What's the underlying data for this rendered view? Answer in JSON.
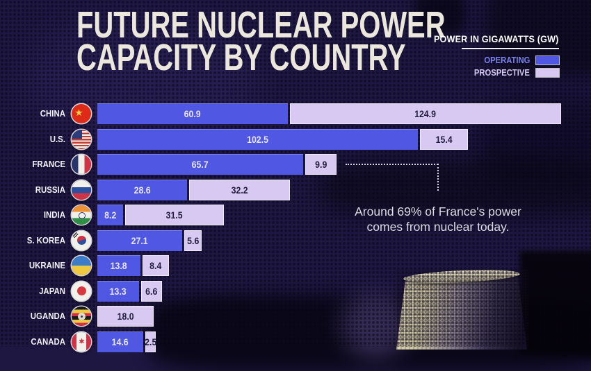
{
  "header": {
    "title_line1": "FUTURE NUCLEAR POWER",
    "title_line2": "CAPACITY BY COUNTRY"
  },
  "legend": {
    "title": "POWER IN GIGAWATTS (GW)",
    "items": [
      {
        "name": "OPERATING",
        "color": "#5057e2"
      },
      {
        "name": "PROSPECTIVE",
        "color": "#d7c9f2"
      }
    ]
  },
  "annotation": {
    "line1": "Around 69% of France's power",
    "line2": "comes from nuclear today.",
    "attached_to": "FRANCE"
  },
  "chart_data": {
    "type": "bar",
    "orientation": "horizontal",
    "unit": "GW",
    "title": "FUTURE NUCLEAR POWER CAPACITY BY COUNTRY",
    "legend_entries": [
      "OPERATING",
      "PROSPECTIVE"
    ],
    "series": [
      {
        "name": "Operating",
        "values": [
          60.9,
          102.5,
          65.7,
          28.6,
          8.2,
          27.1,
          13.8,
          13.3,
          null,
          14.6
        ]
      },
      {
        "name": "Prospective",
        "values": [
          124.9,
          15.4,
          9.9,
          32.2,
          31.5,
          5.6,
          8.4,
          6.6,
          18.0,
          2.5
        ]
      }
    ],
    "categories": [
      "CHINA",
      "U.S.",
      "FRANCE",
      "RUSSIA",
      "INDIA",
      "S. KOREA",
      "UKRAINE",
      "JAPAN",
      "UGANDA",
      "CANADA"
    ],
    "rows": [
      {
        "country": "CHINA",
        "flag": "china",
        "operating": 60.9,
        "prospective": 124.9
      },
      {
        "country": "U.S.",
        "flag": "us",
        "operating": 102.5,
        "prospective": 15.4
      },
      {
        "country": "FRANCE",
        "flag": "france",
        "operating": 65.7,
        "prospective": 9.9
      },
      {
        "country": "RUSSIA",
        "flag": "russia",
        "operating": 28.6,
        "prospective": 32.2
      },
      {
        "country": "INDIA",
        "flag": "india",
        "operating": 8.2,
        "prospective": 31.5
      },
      {
        "country": "S. KOREA",
        "flag": "skorea",
        "operating": 27.1,
        "prospective": 5.6
      },
      {
        "country": "UKRAINE",
        "flag": "ukraine",
        "operating": 13.8,
        "prospective": 8.4
      },
      {
        "country": "JAPAN",
        "flag": "japan",
        "operating": 13.3,
        "prospective": 6.6
      },
      {
        "country": "UGANDA",
        "flag": "uganda",
        "operating": null,
        "prospective": 18.0
      },
      {
        "country": "CANADA",
        "flag": "canada",
        "operating": 14.6,
        "prospective": 2.5
      }
    ],
    "colors": {
      "operating": "#5057e2",
      "prospective": "#d7c9f2"
    },
    "grid": false,
    "legend_position": "top-right",
    "value_labels": "inside-segments"
  }
}
